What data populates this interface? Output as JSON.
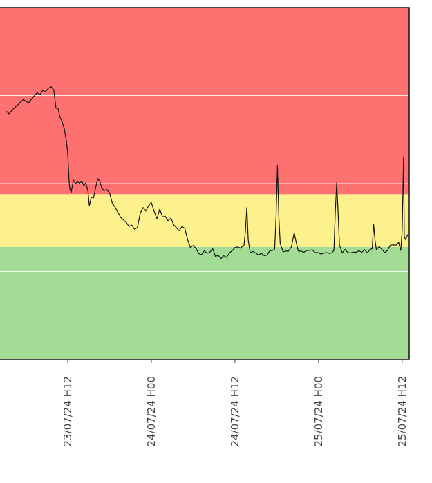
{
  "chart_data": {
    "type": "line",
    "title": "",
    "xlabel": "",
    "ylabel": "",
    "grid": true,
    "x_ticks": [
      {
        "label": "23/07/24 H12",
        "hours": 0
      },
      {
        "label": "24/07/24 H00",
        "hours": 12
      },
      {
        "label": "24/07/24 H12",
        "hours": 24
      },
      {
        "label": "25/07/24 H00",
        "hours": 36
      },
      {
        "label": "25/07/24 H12",
        "hours": 48
      }
    ],
    "xlim_hours": [
      -8.8,
      48.3
    ],
    "ylim": [
      0,
      100
    ],
    "bands": [
      {
        "name": "green",
        "from": 0,
        "to": 32,
        "color": "#a3dc94"
      },
      {
        "name": "yellow",
        "from": 32,
        "to": 47,
        "color": "#fdf18e"
      },
      {
        "name": "red",
        "from": 47,
        "to": 100,
        "color": "#fe7171"
      }
    ],
    "gridlines_y": [
      25,
      50,
      75
    ],
    "line_color": "#111111",
    "series": [
      {
        "name": "",
        "points": [
          [
            -8.8,
            70.5
          ],
          [
            -8.4,
            69.8
          ],
          [
            -8.0,
            70.8
          ],
          [
            -7.6,
            71.6
          ],
          [
            -7.2,
            72.3
          ],
          [
            -6.8,
            73.1
          ],
          [
            -6.4,
            73.8
          ],
          [
            -6.0,
            73.4
          ],
          [
            -5.6,
            72.9
          ],
          [
            -5.2,
            74.0
          ],
          [
            -4.8,
            74.9
          ],
          [
            -4.4,
            75.8
          ],
          [
            -4.0,
            75.2
          ],
          [
            -3.6,
            76.5
          ],
          [
            -3.2,
            76.0
          ],
          [
            -2.8,
            77.0
          ],
          [
            -2.4,
            77.5
          ],
          [
            -2.0,
            76.6
          ],
          [
            -1.7,
            71.5
          ],
          [
            -1.4,
            71.3
          ],
          [
            -1.1,
            68.8
          ],
          [
            -0.8,
            67.6
          ],
          [
            -0.5,
            65.5
          ],
          [
            -0.2,
            62.1
          ],
          [
            0.0,
            58.5
          ],
          [
            0.2,
            50.5
          ],
          [
            0.3,
            48.5
          ],
          [
            0.5,
            47.5
          ],
          [
            0.8,
            51.0
          ],
          [
            1.1,
            50.0
          ],
          [
            1.4,
            50.5
          ],
          [
            1.7,
            50.1
          ],
          [
            2.0,
            50.7
          ],
          [
            2.3,
            49.4
          ],
          [
            2.6,
            50.2
          ],
          [
            2.9,
            47.9
          ],
          [
            3.1,
            43.7
          ],
          [
            3.4,
            46.2
          ],
          [
            3.7,
            45.9
          ],
          [
            4.0,
            48.8
          ],
          [
            4.3,
            51.4
          ],
          [
            4.6,
            50.6
          ],
          [
            4.9,
            48.6
          ],
          [
            5.2,
            48.0
          ],
          [
            5.6,
            48.3
          ],
          [
            6.0,
            47.4
          ],
          [
            6.4,
            44.4
          ],
          [
            6.8,
            43.3
          ],
          [
            7.2,
            41.8
          ],
          [
            7.6,
            40.4
          ],
          [
            8.0,
            39.7
          ],
          [
            8.4,
            38.9
          ],
          [
            8.8,
            37.8
          ],
          [
            9.2,
            38.2
          ],
          [
            9.6,
            37.0
          ],
          [
            10.0,
            37.5
          ],
          [
            10.4,
            41.5
          ],
          [
            10.8,
            43.2
          ],
          [
            11.2,
            42.2
          ],
          [
            11.6,
            43.7
          ],
          [
            12.0,
            44.6
          ],
          [
            12.4,
            42.1
          ],
          [
            12.8,
            40.0
          ],
          [
            13.2,
            42.7
          ],
          [
            13.6,
            40.5
          ],
          [
            14.0,
            40.7
          ],
          [
            14.4,
            39.4
          ],
          [
            14.8,
            40.2
          ],
          [
            15.2,
            38.3
          ],
          [
            15.6,
            37.5
          ],
          [
            16.0,
            36.6
          ],
          [
            16.4,
            37.8
          ],
          [
            16.8,
            37.3
          ],
          [
            17.2,
            34.1
          ],
          [
            17.6,
            31.8
          ],
          [
            18.0,
            32.4
          ],
          [
            18.4,
            31.6
          ],
          [
            18.8,
            30.1
          ],
          [
            19.2,
            29.8
          ],
          [
            19.6,
            30.9
          ],
          [
            20.0,
            30.2
          ],
          [
            20.4,
            30.5
          ],
          [
            20.8,
            31.5
          ],
          [
            21.2,
            29.3
          ],
          [
            21.6,
            29.6
          ],
          [
            22.0,
            28.7
          ],
          [
            22.4,
            29.5
          ],
          [
            22.8,
            29.0
          ],
          [
            23.2,
            30.3
          ],
          [
            23.6,
            30.9
          ],
          [
            24.0,
            31.8
          ],
          [
            24.4,
            32.0
          ],
          [
            24.8,
            31.6
          ],
          [
            25.1,
            32.2
          ],
          [
            25.3,
            32.5
          ],
          [
            25.5,
            36.5
          ],
          [
            25.7,
            43.2
          ],
          [
            25.9,
            34.0
          ],
          [
            26.2,
            30.3
          ],
          [
            26.6,
            30.7
          ],
          [
            27.0,
            30.2
          ],
          [
            27.4,
            29.7
          ],
          [
            27.8,
            30.2
          ],
          [
            28.2,
            29.5
          ],
          [
            28.6,
            29.7
          ],
          [
            29.0,
            30.9
          ],
          [
            29.4,
            31.0
          ],
          [
            29.7,
            31.4
          ],
          [
            29.9,
            40.5
          ],
          [
            30.1,
            55.2
          ],
          [
            30.3,
            40.5
          ],
          [
            30.5,
            33.0
          ],
          [
            30.9,
            30.6
          ],
          [
            31.3,
            30.8
          ],
          [
            31.7,
            30.8
          ],
          [
            32.1,
            32.0
          ],
          [
            32.5,
            36.0
          ],
          [
            32.7,
            34.1
          ],
          [
            33.1,
            30.8
          ],
          [
            33.5,
            30.8
          ],
          [
            33.9,
            30.5
          ],
          [
            34.3,
            31.0
          ],
          [
            34.7,
            31.0
          ],
          [
            35.1,
            31.2
          ],
          [
            35.5,
            30.4
          ],
          [
            35.9,
            30.4
          ],
          [
            36.3,
            30.0
          ],
          [
            36.7,
            30.2
          ],
          [
            37.1,
            30.4
          ],
          [
            37.5,
            30.2
          ],
          [
            37.9,
            30.3
          ],
          [
            38.2,
            31.0
          ],
          [
            38.4,
            42.0
          ],
          [
            38.6,
            50.2
          ],
          [
            38.8,
            42.0
          ],
          [
            39.0,
            32.5
          ],
          [
            39.4,
            30.3
          ],
          [
            39.8,
            31.3
          ],
          [
            40.2,
            30.4
          ],
          [
            40.6,
            30.3
          ],
          [
            41.0,
            30.5
          ],
          [
            41.4,
            30.5
          ],
          [
            41.8,
            30.9
          ],
          [
            42.2,
            30.5
          ],
          [
            42.6,
            31.2
          ],
          [
            43.0,
            30.3
          ],
          [
            43.4,
            31.3
          ],
          [
            43.7,
            31.5
          ],
          [
            43.9,
            38.5
          ],
          [
            44.1,
            34.0
          ],
          [
            44.3,
            31.2
          ],
          [
            44.7,
            32.1
          ],
          [
            45.1,
            31.3
          ],
          [
            45.5,
            30.4
          ],
          [
            45.9,
            31.0
          ],
          [
            46.3,
            32.5
          ],
          [
            46.7,
            32.6
          ],
          [
            47.1,
            32.5
          ],
          [
            47.5,
            33.3
          ],
          [
            47.8,
            31.0
          ],
          [
            48.0,
            36.5
          ],
          [
            48.2,
            57.6
          ],
          [
            48.3,
            35.0
          ],
          [
            48.5,
            34.0
          ],
          [
            48.8,
            35.6
          ]
        ]
      }
    ]
  }
}
